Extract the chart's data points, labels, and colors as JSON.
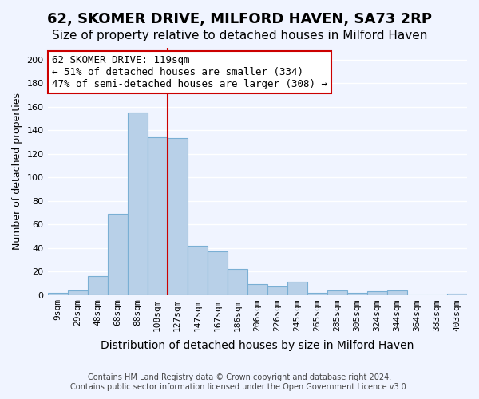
{
  "title": "62, SKOMER DRIVE, MILFORD HAVEN, SA73 2RP",
  "subtitle": "Size of property relative to detached houses in Milford Haven",
  "xlabel": "Distribution of detached houses by size in Milford Haven",
  "ylabel": "Number of detached properties",
  "footer_line1": "Contains HM Land Registry data © Crown copyright and database right 2024.",
  "footer_line2": "Contains public sector information licensed under the Open Government Licence v3.0.",
  "bar_categories": [
    "9sqm",
    "29sqm",
    "48sqm",
    "68sqm",
    "88sqm",
    "108sqm",
    "127sqm",
    "147sqm",
    "167sqm",
    "186sqm",
    "206sqm",
    "226sqm",
    "245sqm",
    "265sqm",
    "285sqm",
    "305sqm",
    "324sqm",
    "344sqm",
    "364sqm",
    "383sqm",
    "403sqm"
  ],
  "bar_values": [
    2,
    4,
    16,
    69,
    155,
    134,
    133,
    42,
    37,
    22,
    9,
    7,
    11,
    2,
    4,
    2,
    3,
    4,
    0,
    0,
    1
  ],
  "bar_color": "#b8d0e8",
  "bar_edge_color": "#7aafd4",
  "background_color": "#f0f4ff",
  "grid_color": "#ffffff",
  "ylim": [
    0,
    210
  ],
  "yticks": [
    0,
    20,
    40,
    60,
    80,
    100,
    120,
    140,
    160,
    180,
    200
  ],
  "property_value": 119,
  "property_bin_index": 5,
  "annotation_box_text": "62 SKOMER DRIVE: 119sqm\n← 51% of detached houses are smaller (334)\n47% of semi-detached houses are larger (308) →",
  "annotation_box_color": "#ffffff",
  "annotation_box_edge_color": "#cc0000",
  "vline_color": "#cc0000",
  "vline_position": 5.5,
  "title_fontsize": 13,
  "subtitle_fontsize": 11,
  "tick_fontsize": 8,
  "ylabel_fontsize": 9,
  "xlabel_fontsize": 10,
  "annotation_fontsize": 9
}
